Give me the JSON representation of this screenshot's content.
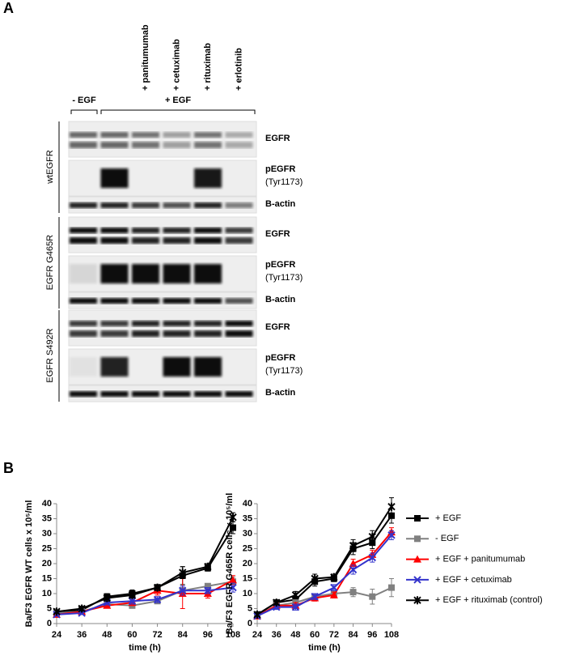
{
  "panel_labels": [
    "A",
    "B"
  ],
  "blot": {
    "conditions": [
      "- EGF",
      "+ EGF"
    ],
    "treatments": [
      "+ panitumumab",
      "+ cetuximab",
      "+ rituximab",
      "+ erlotinib"
    ],
    "groups": [
      {
        "label": "wtEGFR",
        "rows": [
          {
            "label": "EGFR"
          },
          {
            "label": "pEGFR",
            "sublabel": "(Tyr1173)"
          },
          {
            "label": "B-actin"
          }
        ]
      },
      {
        "label": "EGFR G465R",
        "rows": [
          {
            "label": "EGFR"
          },
          {
            "label": "pEGFR",
            "sublabel": "(Tyr1173)"
          },
          {
            "label": "B-actin"
          }
        ]
      },
      {
        "label": "EGFR S492R",
        "rows": [
          {
            "label": "EGFR"
          },
          {
            "label": "pEGFR",
            "sublabel": "(Tyr1173)"
          },
          {
            "label": "B-actin"
          }
        ]
      }
    ]
  },
  "chart_data": [
    {
      "type": "line",
      "y_label": "Ba/F3 EGFR WT cells x 10⁵/ml",
      "x_label": "time (h)",
      "x": [
        24,
        36,
        48,
        60,
        72,
        84,
        96,
        108
      ],
      "xlim": [
        24,
        108
      ],
      "ylim": [
        0,
        40
      ],
      "yticks": [
        0,
        5,
        10,
        15,
        20,
        25,
        30,
        35,
        40
      ],
      "series": [
        {
          "color": "#000000",
          "marker": "square",
          "values": [
            3.5,
            4.5,
            9,
            10,
            12,
            16,
            18.5,
            32
          ],
          "errors": [
            0.5,
            0.8,
            1,
            1.2,
            1,
            3,
            1,
            2
          ]
        },
        {
          "color": "#808080",
          "marker": "square",
          "values": [
            3.5,
            4,
            6.5,
            6,
            7.5,
            11,
            12.5,
            14
          ],
          "errors": [
            0.5,
            0.5,
            0.8,
            0.8,
            0.8,
            1,
            0.8,
            1.5
          ]
        },
        {
          "color": "#ff0000",
          "marker": "triangle",
          "values": [
            3,
            4,
            6,
            7,
            11,
            10,
            10,
            14.5
          ],
          "errors": [
            0.5,
            0.5,
            0.8,
            1,
            1.5,
            5,
            1.5,
            1.5
          ]
        },
        {
          "color": "#3333cc",
          "marker": "x",
          "values": [
            3,
            3.5,
            7,
            7.5,
            8,
            11,
            11,
            12
          ],
          "errors": [
            0.5,
            0.5,
            0.8,
            1,
            1,
            1.5,
            1,
            1.5
          ]
        },
        {
          "color": "#000000",
          "marker": "star",
          "values": [
            4,
            5,
            8.5,
            9.5,
            12,
            17,
            19,
            35.5
          ],
          "errors": [
            0.5,
            0.8,
            1,
            1,
            1,
            2,
            1,
            1.5
          ]
        }
      ]
    },
    {
      "type": "line",
      "y_label": "Ba/F3 EGFR G465R cells x 10⁵/ml",
      "x_label": "time (h)",
      "x": [
        24,
        36,
        48,
        60,
        72,
        84,
        96,
        108
      ],
      "xlim": [
        24,
        108
      ],
      "ylim": [
        0,
        40
      ],
      "yticks": [
        0,
        5,
        10,
        15,
        20,
        25,
        30,
        35,
        40
      ],
      "series": [
        {
          "name": "+ EGF",
          "color": "#000000",
          "marker": "square",
          "values": [
            3,
            7,
            8,
            14,
            15,
            25,
            27,
            36
          ],
          "errors": [
            0.5,
            0.8,
            1,
            1.5,
            1,
            2,
            2,
            2.5
          ]
        },
        {
          "name": "- EGF",
          "color": "#808080",
          "marker": "square",
          "values": [
            2.5,
            6,
            7,
            9,
            10,
            10.5,
            9,
            12
          ],
          "errors": [
            0.5,
            0.8,
            0.8,
            1,
            1,
            1.5,
            2.5,
            3
          ]
        },
        {
          "name": "+ EGF + panitumumab",
          "color": "#ff0000",
          "marker": "triangle",
          "values": [
            2.5,
            6,
            6,
            8.5,
            9.5,
            20,
            23,
            30.5
          ],
          "errors": [
            0.5,
            0.8,
            1,
            1,
            1,
            1.5,
            1.5,
            1.5
          ]
        },
        {
          "name": "+ EGF + cetuximab",
          "color": "#3333cc",
          "marker": "x",
          "values": [
            2.5,
            5.5,
            5.5,
            9,
            12,
            18,
            22,
            29.5
          ],
          "errors": [
            0.5,
            0.8,
            1,
            1,
            1,
            1.5,
            1.5,
            1.5
          ]
        },
        {
          "name": "+ EGF + rituximab (control)",
          "color": "#000000",
          "marker": "star",
          "values": [
            3,
            7,
            9.5,
            15,
            15.5,
            26,
            29,
            39
          ],
          "errors": [
            0.5,
            0.8,
            1.2,
            1.5,
            1,
            2,
            2,
            3
          ]
        }
      ]
    }
  ]
}
